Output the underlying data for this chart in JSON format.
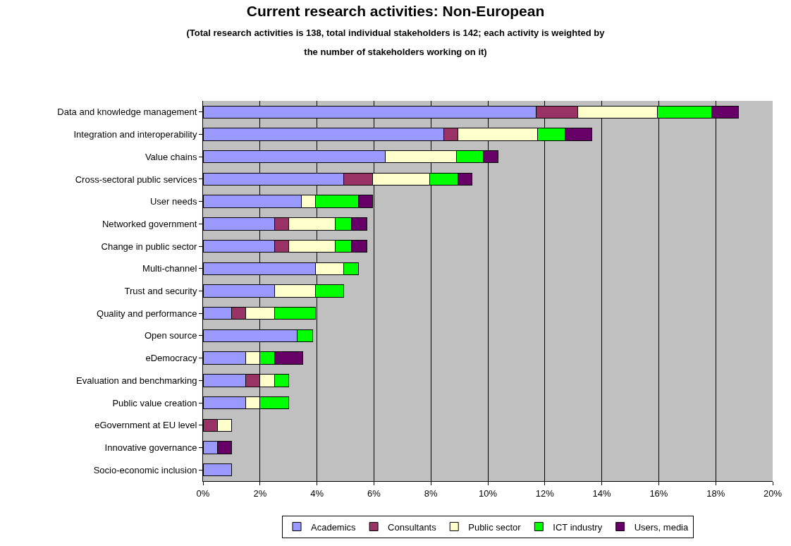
{
  "chart_data": {
    "type": "bar",
    "orientation": "horizontal",
    "stacked": true,
    "title": "Current research activities: Non-European",
    "subtitle": "(Total research activities is 138, total individual stakeholders is 142; each activity is weighted by the number of stakeholders working on it)",
    "categories": [
      "Data and knowledge management",
      "Integration and interoperability",
      "Value chains",
      "Cross-sectoral public services",
      "User needs",
      "Networked government",
      "Change in public sector",
      "Multi-channel",
      "Trust and security",
      "Quality and performance",
      "Open source",
      "eDemocracy",
      "Evaluation and benchmarking",
      "Public value creation",
      "eGovernment at EU level",
      "Innovative governance",
      "Socio-economic inclusion"
    ],
    "series": [
      {
        "name": "Academics",
        "color": "#9999ff",
        "values": [
          11.7,
          8.45,
          6.4,
          4.95,
          3.45,
          2.5,
          2.5,
          3.95,
          2.5,
          1.0,
          3.3,
          1.5,
          1.5,
          1.5,
          null,
          0.5,
          1.0
        ]
      },
      {
        "name": "Consultants",
        "color": "#993366",
        "values": [
          1.45,
          0.5,
          null,
          1.0,
          null,
          0.5,
          0.5,
          null,
          null,
          0.5,
          null,
          null,
          0.5,
          null,
          0.5,
          null,
          null
        ]
      },
      {
        "name": "Public sector",
        "color": "#ffffcc",
        "values": [
          2.8,
          2.8,
          2.5,
          2.0,
          0.5,
          1.65,
          1.65,
          1.0,
          1.45,
          1.0,
          null,
          0.5,
          0.5,
          0.5,
          0.5,
          null,
          null
        ]
      },
      {
        "name": "ICT industry",
        "color": "#00ff00",
        "values": [
          1.9,
          0.95,
          0.95,
          1.0,
          1.5,
          0.55,
          0.55,
          0.5,
          1.0,
          1.45,
          0.55,
          0.5,
          0.5,
          1.0,
          null,
          null,
          null
        ]
      },
      {
        "name": "Users, media",
        "color": "#660066",
        "values": [
          0.95,
          0.95,
          0.5,
          0.5,
          0.5,
          0.55,
          0.55,
          null,
          null,
          null,
          null,
          1.0,
          null,
          null,
          null,
          0.5,
          null
        ]
      }
    ],
    "xlim": [
      0,
      20
    ],
    "xticks": [
      {
        "value": 0,
        "label": "0%"
      },
      {
        "value": 2,
        "label": "2%"
      },
      {
        "value": 4,
        "label": "4%"
      },
      {
        "value": 6,
        "label": "6%"
      },
      {
        "value": 8,
        "label": "8%"
      },
      {
        "value": 10,
        "label": "10%"
      },
      {
        "value": 12,
        "label": "12%"
      },
      {
        "value": 14,
        "label": "14%"
      },
      {
        "value": 16,
        "label": "16%"
      },
      {
        "value": 18,
        "label": "18%"
      },
      {
        "value": 20,
        "label": "20%"
      }
    ],
    "grid": "x",
    "legend": "bottom"
  }
}
